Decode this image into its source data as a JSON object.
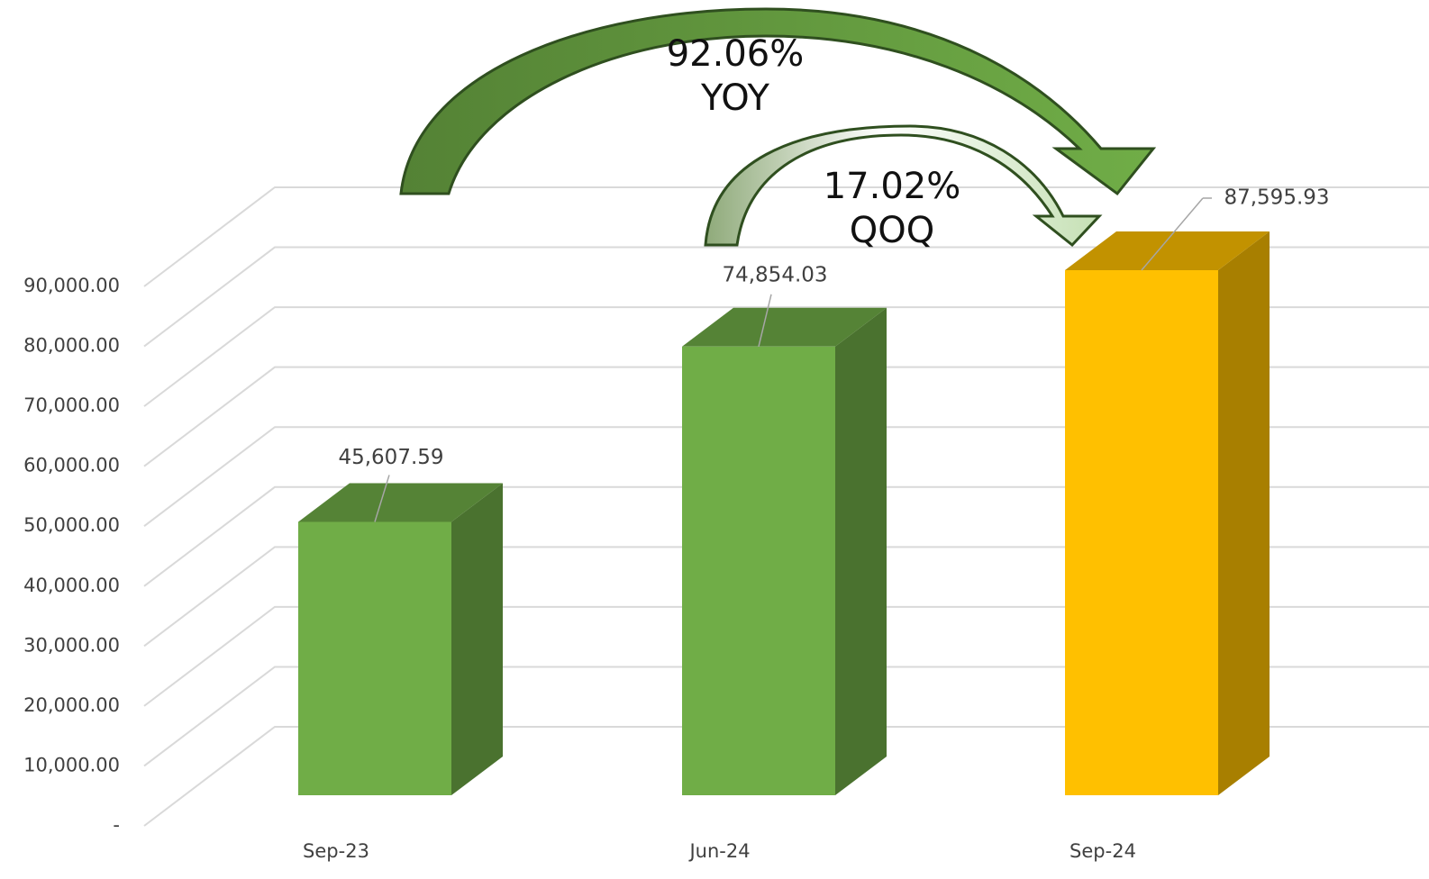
{
  "chart_data": {
    "type": "bar3d",
    "categories": [
      "Sep-23",
      "Jun-24",
      "Sep-24"
    ],
    "values": [
      45607.59,
      74854.03,
      87595.93
    ],
    "value_labels": [
      "45,607.59",
      "74,854.03",
      "87,595.93"
    ],
    "colors": [
      "#70ad47",
      "#70ad47",
      "#ffc000"
    ],
    "ylim": [
      0,
      90000
    ],
    "yticks": [
      {
        "value": 0,
        "label": "-"
      },
      {
        "value": 10000,
        "label": "10,000.00"
      },
      {
        "value": 20000,
        "label": "20,000.00"
      },
      {
        "value": 30000,
        "label": "30,000.00"
      },
      {
        "value": 40000,
        "label": "40,000.00"
      },
      {
        "value": 50000,
        "label": "50,000.00"
      },
      {
        "value": 60000,
        "label": "60,000.00"
      },
      {
        "value": 70000,
        "label": "70,000.00"
      },
      {
        "value": 80000,
        "label": "80,000.00"
      },
      {
        "value": 90000,
        "label": "90,000.00"
      }
    ],
    "grid": true,
    "annotations": [
      {
        "lines": [
          "92.06%",
          "YOY"
        ]
      },
      {
        "lines": [
          "17.02%",
          "QOQ"
        ]
      }
    ]
  }
}
